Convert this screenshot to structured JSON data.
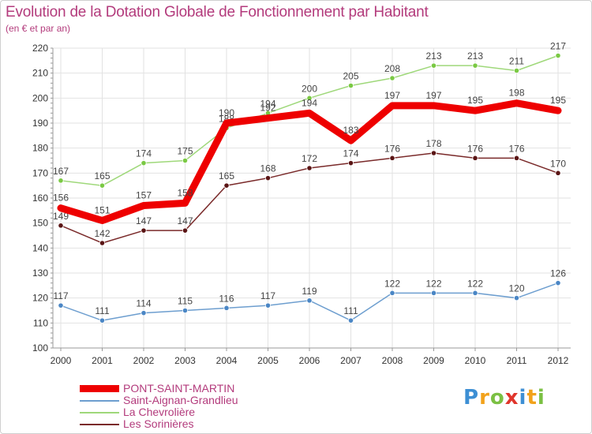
{
  "chart_data": {
    "type": "line",
    "title": "Evolution de la Dotation Globale de Fonctionnement par Habitant",
    "subtitle": "(en € et par an)",
    "xlabel": "",
    "ylabel": "",
    "ylim": [
      100,
      220
    ],
    "yticks": [
      100,
      110,
      120,
      130,
      140,
      150,
      160,
      170,
      180,
      190,
      200,
      210,
      220
    ],
    "categories": [
      "2000",
      "2001",
      "2002",
      "2003",
      "2004",
      "2005",
      "2006",
      "2007",
      "2008",
      "2009",
      "2010",
      "2011",
      "2012"
    ],
    "grid": true,
    "legend_position": "bottom-left",
    "series": [
      {
        "name": "Les Sorinières",
        "color": "#7a2a2a",
        "marker": "#5a1515",
        "values": [
          149,
          142,
          147,
          147,
          165,
          168,
          172,
          174,
          176,
          178,
          176,
          176,
          170
        ]
      },
      {
        "name": "La Chevrolière",
        "color": "#9fd87a",
        "marker": "#7ac943",
        "values": [
          167,
          165,
          174,
          175,
          188,
          194,
          200,
          205,
          208,
          213,
          213,
          211,
          217
        ]
      },
      {
        "name": "Saint-Aignan-Grandlieu",
        "color": "#6d9ecf",
        "marker": "#4a86c5",
        "values": [
          117,
          111,
          114,
          115,
          116,
          117,
          119,
          111,
          122,
          122,
          122,
          120,
          126
        ]
      },
      {
        "name": "PONT-SAINT-MARTIN",
        "color": "#ee0000",
        "marker": "#ee0000",
        "values": [
          156,
          151,
          157,
          158,
          190,
          192,
          194,
          183,
          197,
          197,
          195,
          198,
          195
        ]
      }
    ],
    "legend_order": [
      "PONT-SAINT-MARTIN",
      "Saint-Aignan-Grandlieu",
      "La Chevrolière",
      "Les Sorinières"
    ]
  },
  "logo": {
    "letters": [
      "P",
      "r",
      "o",
      "x",
      "i",
      "t",
      "i"
    ],
    "colors": [
      "#3d8fd4",
      "#f2a21b",
      "#7bc043",
      "#e0352b",
      "#3d8fd4",
      "#f2a21b",
      "#7bc043"
    ]
  }
}
